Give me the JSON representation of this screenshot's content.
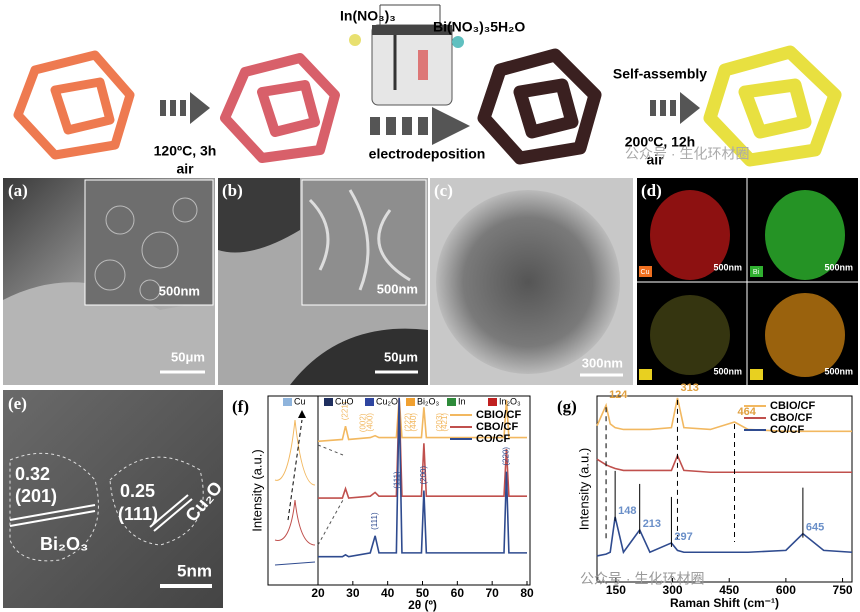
{
  "schematic": {
    "precursor_1": "In(NO₃)₃",
    "precursor_2": "Bi(NO₃)₃5H₂O",
    "step_1": "120ºC, 3h",
    "step_1_atm": "air",
    "step_2": "electrodeposition",
    "step_3": "Self-assembly",
    "step_4": "200ºC, 12h",
    "step_4_atm": "air"
  },
  "watermark": "公众号 · 生化环材圈",
  "panels": {
    "a": {
      "label": "(a)",
      "scale": "50μm",
      "inset_scale": "500nm"
    },
    "b": {
      "label": "(b)",
      "scale": "50μm",
      "inset_scale": "500nm"
    },
    "c": {
      "label": "(c)",
      "scale": "300nm"
    },
    "d": {
      "label": "(d)",
      "maps": [
        {
          "element": "Cu",
          "scale": "500nm"
        },
        {
          "element": "Bi",
          "scale": "500nm"
        },
        {
          "scale": "500nm"
        },
        {
          "scale": "500nm"
        }
      ]
    },
    "e": {
      "label": "(e)",
      "d1": "0.32",
      "plane1": "(201)",
      "phase1": "Bi₂O₃",
      "d2": "0.25",
      "plane2": "(111)",
      "phase2": "Cu₂O",
      "scale": "5nm"
    },
    "f": {
      "label": "(f)"
    },
    "g": {
      "label": "(g)"
    }
  },
  "chart_data": [
    {
      "type": "line",
      "xlabel": "2θ (º)",
      "ylabel": "Intensity (a.u.)",
      "x": [
        20,
        27,
        27.9,
        28.8,
        35,
        36.4,
        37.5,
        42.5,
        43.3,
        44.1,
        49.7,
        50.4,
        51.1,
        60,
        73.4,
        74.1,
        74.8,
        80
      ],
      "xlim": [
        20,
        80
      ],
      "xticks": [
        20,
        30,
        40,
        50,
        60,
        70,
        80
      ],
      "ylim": [
        0,
        10
      ],
      "series": [
        {
          "name": "CBIO/CF",
          "color": "#f2b860",
          "values": [
            7.6,
            7.7,
            8.4,
            7.7,
            7.8,
            7.9,
            7.8,
            7.8,
            9.9,
            7.8,
            7.8,
            9.4,
            7.8,
            7.8,
            7.8,
            9.8,
            7.8,
            7.8
          ]
        },
        {
          "name": "CBO/CF",
          "color": "#c0504d",
          "values": [
            4.6,
            4.6,
            5.1,
            4.6,
            4.7,
            4.9,
            4.7,
            4.7,
            9.9,
            4.7,
            4.7,
            7.5,
            4.7,
            4.7,
            4.7,
            7.2,
            4.7,
            4.7
          ]
        },
        {
          "name": "CO/CF",
          "color": "#2f4b8f",
          "values": [
            1.5,
            1.5,
            1.6,
            1.5,
            1.7,
            2.6,
            1.7,
            1.7,
            9.9,
            1.7,
            1.7,
            5.0,
            1.7,
            1.7,
            1.7,
            6.0,
            1.7,
            1.7
          ]
        }
      ],
      "phases": [
        {
          "name": "Cu",
          "color": "#8fb4dc"
        },
        {
          "name": "CuO",
          "color": "#1f2f5f"
        },
        {
          "name": "Cu₂O",
          "color": "#2e45a0"
        },
        {
          "name": "Bi₂O₃",
          "color": "#f0a030"
        },
        {
          "name": "In",
          "color": "#2e8b3a"
        },
        {
          "name": "In₂O₃",
          "color": "#c02020"
        }
      ],
      "peak_labels": [
        {
          "x": 27.9,
          "label": "(221)",
          "series": 0
        },
        {
          "x": 33,
          "label": "(002)",
          "series": 0
        },
        {
          "x": 35,
          "label": "(400)",
          "series": 0
        },
        {
          "x": 36.4,
          "label": "(111)",
          "series": 2
        },
        {
          "x": 42.8,
          "label": "(111)",
          "series": 2
        },
        {
          "x": 46,
          "label": "(222)",
          "series": 0
        },
        {
          "x": 47.5,
          "label": "(440)",
          "series": 0
        },
        {
          "x": 50.4,
          "label": "(200)",
          "series": 2
        },
        {
          "x": 55,
          "label": "(203)",
          "series": 0
        },
        {
          "x": 56.5,
          "label": "(421)",
          "series": 0
        },
        {
          "x": 74.1,
          "label": "(220)",
          "series": 2
        }
      ]
    },
    {
      "type": "line",
      "xlabel": "Raman Shift (cm⁻¹)",
      "ylabel": "Intensity (a.u.)",
      "x": [
        100,
        124,
        135,
        148,
        170,
        213,
        240,
        297,
        313,
        330,
        400,
        464,
        500,
        600,
        645,
        700,
        775
      ],
      "xlim": [
        100,
        775
      ],
      "xticks": [
        150,
        300,
        450,
        600,
        750
      ],
      "ylim": [
        0,
        10
      ],
      "series": [
        {
          "name": "CBIO/CF",
          "color": "#f2b860",
          "values": [
            8.4,
            9.5,
            8.5,
            8.3,
            8.2,
            8.2,
            8.2,
            8.3,
            9.9,
            8.3,
            8.2,
            8.6,
            8.2,
            8.1,
            8.1,
            8.1,
            8.1
          ]
        },
        {
          "name": "CBO/CF",
          "color": "#c0504d",
          "values": [
            6.6,
            6.3,
            6.2,
            6.1,
            6.0,
            6.0,
            6.0,
            6.0,
            6.8,
            6.0,
            5.9,
            5.9,
            5.9,
            5.9,
            5.9,
            5.9,
            5.9
          ]
        },
        {
          "name": "CO/CF",
          "color": "#2f4b8f",
          "values": [
            1.4,
            1.5,
            1.6,
            3.5,
            1.6,
            2.8,
            1.6,
            2.1,
            1.7,
            1.6,
            1.6,
            1.6,
            1.6,
            1.7,
            2.6,
            1.7,
            1.6
          ]
        }
      ],
      "peak_labels": [
        {
          "x": 124,
          "label": "124",
          "series": 0
        },
        {
          "x": 313,
          "label": "313",
          "series": 0
        },
        {
          "x": 464,
          "label": "464",
          "series": 0
        },
        {
          "x": 148,
          "label": "148",
          "series": 2
        },
        {
          "x": 213,
          "label": "213",
          "series": 2
        },
        {
          "x": 297,
          "label": "297",
          "series": 2
        },
        {
          "x": 645,
          "label": "645",
          "series": 2
        }
      ]
    }
  ]
}
